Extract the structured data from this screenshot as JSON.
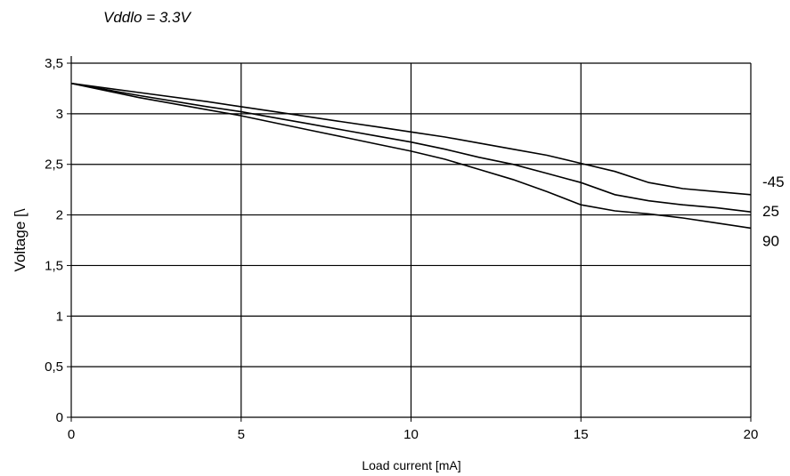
{
  "chart_data": {
    "type": "line",
    "title": "Vddlo = 3.3V",
    "xlabel": "Load current [mA]",
    "ylabel": "Voltage [\\",
    "xlim": [
      0,
      20
    ],
    "ylim": [
      0,
      3.5
    ],
    "x_ticks": [
      0,
      5,
      10,
      15,
      20
    ],
    "y_ticks": [
      0,
      0.5,
      1,
      1.5,
      2,
      2.5,
      3,
      3.5
    ],
    "x_tick_labels": [
      "0",
      "5",
      "10",
      "15",
      "20"
    ],
    "y_tick_labels": [
      "0",
      "0,5",
      "1",
      "1,5",
      "2",
      "2,5",
      "3",
      "3,5"
    ],
    "grid": true,
    "legend": "end-of-line labels",
    "line_color": "#000000",
    "series": [
      {
        "name": "-45",
        "x": [
          0,
          2,
          4,
          5,
          6,
          7,
          8,
          9,
          10,
          11,
          12,
          13,
          14,
          15,
          16,
          17,
          18,
          19,
          20
        ],
        "values": [
          3.3,
          3.21,
          3.12,
          3.07,
          3.02,
          2.97,
          2.92,
          2.87,
          2.82,
          2.77,
          2.71,
          2.65,
          2.59,
          2.51,
          2.43,
          2.32,
          2.26,
          2.23,
          2.2
        ]
      },
      {
        "name": "25",
        "x": [
          0,
          2,
          4,
          5,
          6,
          7,
          8,
          9,
          10,
          11,
          12,
          13,
          14,
          15,
          16,
          17,
          18,
          19,
          20
        ],
        "values": [
          3.3,
          3.18,
          3.07,
          3.02,
          2.96,
          2.9,
          2.84,
          2.78,
          2.72,
          2.65,
          2.57,
          2.5,
          2.41,
          2.32,
          2.2,
          2.14,
          2.1,
          2.07,
          2.03
        ]
      },
      {
        "name": "90",
        "x": [
          0,
          2,
          4,
          5,
          6,
          7,
          8,
          9,
          10,
          11,
          12,
          13,
          14,
          15,
          16,
          17,
          18,
          19,
          20
        ],
        "values": [
          3.3,
          3.16,
          3.04,
          2.98,
          2.91,
          2.84,
          2.77,
          2.7,
          2.63,
          2.55,
          2.45,
          2.35,
          2.23,
          2.1,
          2.04,
          2.01,
          1.97,
          1.92,
          1.87
        ]
      }
    ]
  }
}
